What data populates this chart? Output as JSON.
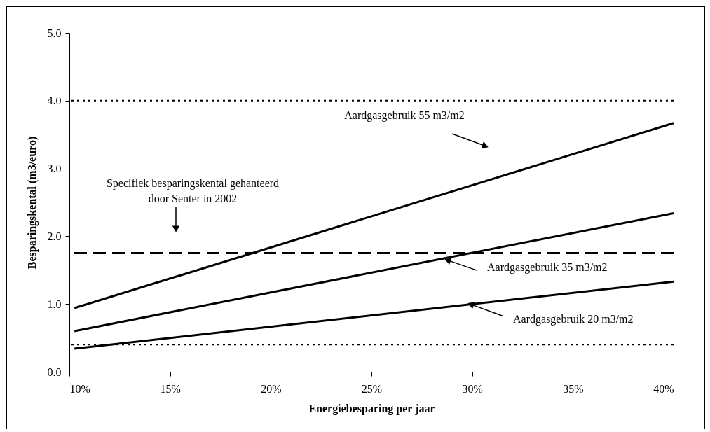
{
  "chart_data": {
    "type": "line",
    "xlabel": "Energiebesparing per jaar",
    "ylabel": "Besparingskental (m3/euro)",
    "x": [
      10.25,
      40
    ],
    "series": [
      {
        "color": "#000000",
        "values": [
          0.94,
          3.67
        ]
      },
      {
        "color": "#000000",
        "values": [
          0.6,
          2.34
        ]
      },
      {
        "color": "#000000",
        "values": [
          0.34,
          1.33
        ]
      }
    ],
    "xlim": [
      10,
      40
    ],
    "xticks": [
      {
        "value": 10,
        "label": "10%"
      },
      {
        "value": 15,
        "label": "15%"
      },
      {
        "value": 20,
        "label": "20%"
      },
      {
        "value": 25,
        "label": "25%"
      },
      {
        "value": 30,
        "label": "30%"
      },
      {
        "value": 35,
        "label": "35%"
      },
      {
        "value": 40,
        "label": "40%"
      }
    ],
    "ylim": [
      0,
      5
    ],
    "yticks": [
      {
        "value": 0,
        "label": "0.0"
      },
      {
        "value": 1,
        "label": "1.0"
      },
      {
        "value": 2,
        "label": "2.0"
      },
      {
        "value": 3,
        "label": "3.0"
      },
      {
        "value": 4,
        "label": "4.0"
      },
      {
        "value": 5,
        "label": "5.0"
      }
    ],
    "ref_lines": [
      {
        "axis": "y",
        "value": 4.0,
        "line_style": "dotted",
        "color": "#000000"
      },
      {
        "axis": "y",
        "value": 1.75,
        "line_style": "dashed",
        "color": "#000000"
      },
      {
        "axis": "y",
        "value": 0.4,
        "line_style": "dotted",
        "color": "#000000"
      }
    ],
    "annotations": [
      "Specifiek besparingskental gehanteerd\ndoor Senter in 2002",
      "Aardgasgebruik 55 m3/m2",
      {
        "text": "Aardgasgebruik 35 m3/m2",
        "x": 28.55,
        "y": 1.67
      },
      {
        "text": "Aardgasgebruik 20 m3/m2",
        "x": 29.7,
        "y": 1.02
      }
    ],
    "grid": false,
    "marker": "none",
    "line_style": "solid"
  }
}
